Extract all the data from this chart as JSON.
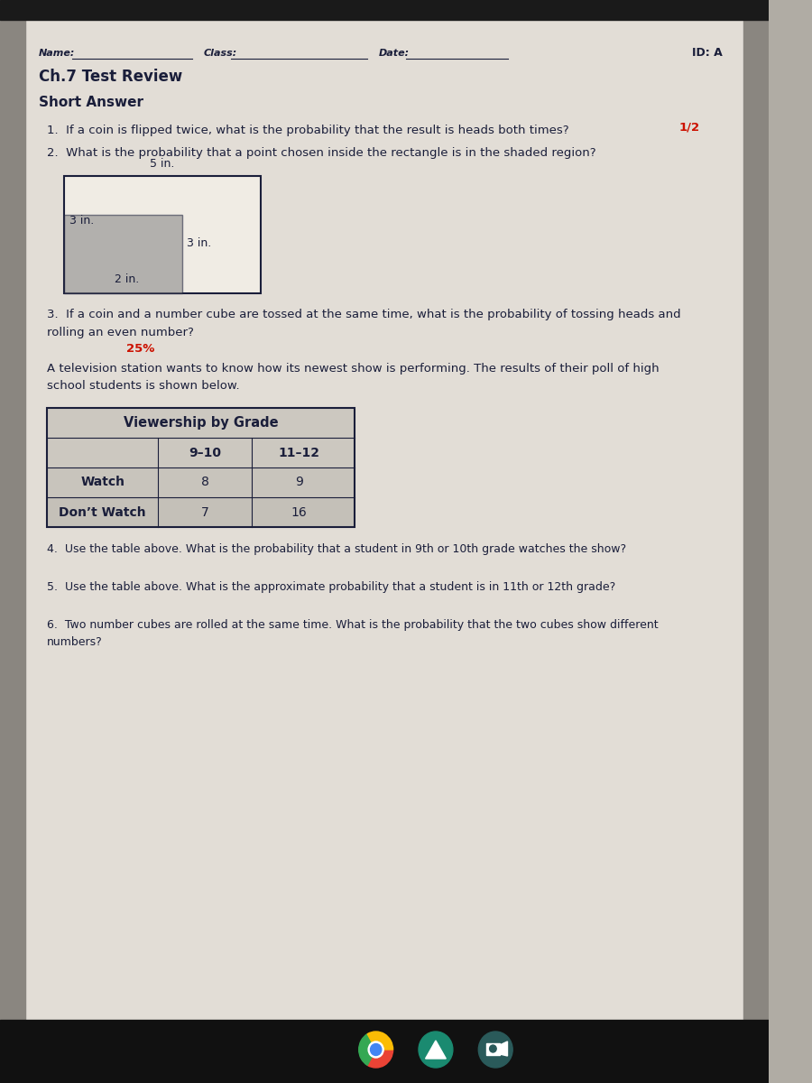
{
  "bg_color": "#b0aca4",
  "page_bg": "#e2ddd6",
  "top_bar_color": "#1a1a1a",
  "bottom_bar_color": "#111111",
  "text_color": "#1a1e3a",
  "red_color": "#cc1100",
  "title_id": "ID: A",
  "title": "Ch.7 Test Review",
  "subtitle": "Short Answer",
  "q1": "1.  If a coin is flipped twice, what is the probability that the result is heads both times?",
  "q1_answer": "1/2",
  "q2": "2.  What is the probability that a point chosen inside the rectangle is in the shaded region?",
  "q2_label_top": "5 in.",
  "q2_label_left": "3 in.",
  "q2_label_inner": "2 in.",
  "q2_label_right": "3 in.",
  "q3a": "3.  If a coin and a number cube are tossed at the same time, what is the probability of tossing heads and",
  "q3b": "rolling an even number?",
  "q3_answer": "25%",
  "tv_intro1": "A television station wants to know how its newest show is performing. The results of their poll of high",
  "tv_intro2": "school students is shown below.",
  "table_title": "Viewership by Grade",
  "table_col2": "9–10",
  "table_col3": "11–12",
  "table_row1_label": "Watch",
  "table_row1_c2": "8",
  "table_row1_c3": "9",
  "table_row2_label": "Don’t Watch",
  "table_row2_c2": "7",
  "table_row2_c3": "16",
  "q4": "4.  Use the table above. What is the probability that a student in 9th or 10th grade watches the show?",
  "q5": "5.  Use the table above. What is the approximate probability that a student is in 11th or 12th grade?",
  "q6a": "6.  Two number cubes are rolled at the same time. What is the probability that the two cubes show different",
  "q6b": "numbers?",
  "shaded_fill": "#808080",
  "outer_rect_fill": "#f0ece4"
}
